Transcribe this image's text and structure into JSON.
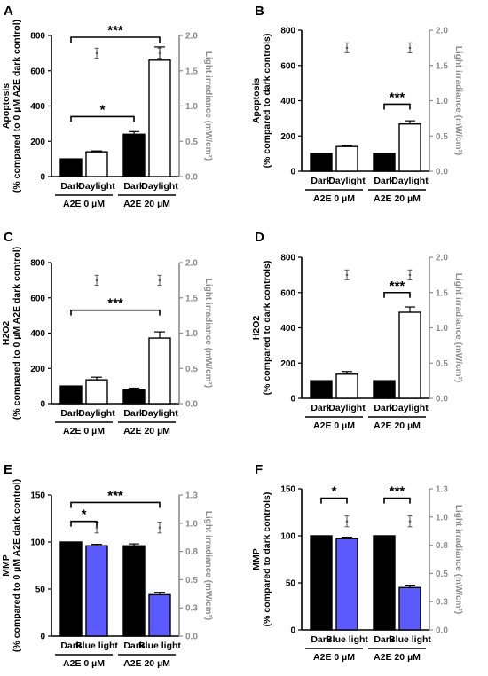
{
  "figure": {
    "colors": {
      "dark": "#000000",
      "daylight": "#ffffff",
      "blue_light": "#5a5aff",
      "irradiance_axis": "#8c8c8c"
    },
    "panels": [
      {
        "label": "A",
        "ylabel_lines": [
          "Apoptosis",
          "(% compared to 0 µM A2E dark control)"
        ],
        "ylim": [
          0,
          800
        ],
        "yticks": [
          0,
          200,
          400,
          600,
          800
        ],
        "right_ylabel": "Light irradiance (mW/cm²)",
        "right_ylim": [
          0,
          2.0
        ],
        "right_ticks": [
          "0.0",
          "0.5",
          "1.0",
          "1.5",
          "2.0"
        ],
        "bars": [
          {
            "label": "Dark",
            "value": 100,
            "err": 0,
            "color": "#000000"
          },
          {
            "label": "Daylight",
            "value": 140,
            "err": 5,
            "color": "#ffffff"
          },
          {
            "label": "Dark",
            "value": 240,
            "err": 15,
            "color": "#000000"
          },
          {
            "label": "Daylight",
            "value": 660,
            "err": 75,
            "color": "#ffffff"
          }
        ],
        "irradiance": [
          {
            "bar": 1,
            "value": 1.75,
            "err": 0.07
          },
          {
            "bar": 3,
            "value": 1.75,
            "err": 0.07
          }
        ],
        "groups": [
          "A2E 0 µM",
          "A2E 20 µM"
        ],
        "significance": [
          {
            "from": 0,
            "to": 2,
            "text": "*",
            "y": 340
          },
          {
            "from": 0,
            "to": 3,
            "text": "***",
            "y": 790
          }
        ]
      },
      {
        "label": "B",
        "ylabel_lines": [
          "Apoptosis",
          "(% compared to dark controls)"
        ],
        "ylim": [
          0,
          800
        ],
        "yticks": [
          0,
          200,
          400,
          600,
          800
        ],
        "right_ylabel": "Light irradiance (mW/cm²)",
        "right_ylim": [
          0,
          2.0
        ],
        "right_ticks": [
          "0.0",
          "0.5",
          "1.0",
          "1.5",
          "2.0"
        ],
        "bars": [
          {
            "label": "Dark",
            "value": 100,
            "err": 0,
            "color": "#000000"
          },
          {
            "label": "Daylight",
            "value": 140,
            "err": 5,
            "color": "#ffffff"
          },
          {
            "label": "Dark",
            "value": 100,
            "err": 0,
            "color": "#000000"
          },
          {
            "label": "Daylight",
            "value": 268,
            "err": 18,
            "color": "#ffffff"
          }
        ],
        "irradiance": [
          {
            "bar": 1,
            "value": 1.75,
            "err": 0.07
          },
          {
            "bar": 3,
            "value": 1.75,
            "err": 0.07
          }
        ],
        "groups": [
          "A2E 0 µM",
          "A2E 20 µM"
        ],
        "significance": [
          {
            "from": 2,
            "to": 3,
            "text": "***",
            "y": 380
          }
        ]
      },
      {
        "label": "C",
        "ylabel_lines": [
          "H2O2",
          "(% compared to 0 µM A2E dark control)"
        ],
        "ylim": [
          0,
          800
        ],
        "yticks": [
          0,
          200,
          400,
          600,
          800
        ],
        "right_ylabel": "Light irradiance (mW/cm²)",
        "right_ylim": [
          0,
          2.0
        ],
        "right_ticks": [
          "0.0",
          "0.5",
          "1.0",
          "1.5",
          "2.0"
        ],
        "bars": [
          {
            "label": "Dark",
            "value": 100,
            "err": 0,
            "color": "#000000"
          },
          {
            "label": "Daylight",
            "value": 135,
            "err": 15,
            "color": "#ffffff"
          },
          {
            "label": "Dark",
            "value": 78,
            "err": 10,
            "color": "#000000"
          },
          {
            "label": "Daylight",
            "value": 372,
            "err": 35,
            "color": "#ffffff"
          }
        ],
        "irradiance": [
          {
            "bar": 1,
            "value": 1.75,
            "err": 0.07
          },
          {
            "bar": 3,
            "value": 1.75,
            "err": 0.07
          }
        ],
        "groups": [
          "A2E 0 µM",
          "A2E 20 µM"
        ],
        "significance": [
          {
            "from": 0,
            "to": 3,
            "text": "***",
            "y": 530
          }
        ]
      },
      {
        "label": "D",
        "ylabel_lines": [
          "H2O2",
          "(% compared to dark controls)"
        ],
        "ylim": [
          0,
          800
        ],
        "yticks": [
          0,
          200,
          400,
          600,
          800
        ],
        "right_ylabel": "Light irradiance (mW/cm²)",
        "right_ylim": [
          0,
          2.0
        ],
        "right_ticks": [
          "0.0",
          "0.5",
          "1.0",
          "1.5",
          "2.0"
        ],
        "bars": [
          {
            "label": "Dark",
            "value": 100,
            "err": 0,
            "color": "#000000"
          },
          {
            "label": "Daylight",
            "value": 137,
            "err": 15,
            "color": "#ffffff"
          },
          {
            "label": "Dark",
            "value": 100,
            "err": 0,
            "color": "#000000"
          },
          {
            "label": "Daylight",
            "value": 488,
            "err": 30,
            "color": "#ffffff"
          }
        ],
        "irradiance": [
          {
            "bar": 1,
            "value": 1.75,
            "err": 0.07
          },
          {
            "bar": 3,
            "value": 1.75,
            "err": 0.07
          }
        ],
        "groups": [
          "A2E 0 µM",
          "A2E 20 µM"
        ],
        "significance": [
          {
            "from": 2,
            "to": 3,
            "text": "***",
            "y": 600
          }
        ]
      },
      {
        "label": "E",
        "ylabel_lines": [
          "MMP",
          "(% compared to 0 µM A2E dark control)"
        ],
        "ylim": [
          0,
          150
        ],
        "yticks": [
          0,
          50,
          100,
          150
        ],
        "right_ylabel": "Light irradiance (mW/cm²)",
        "right_ylim": [
          0,
          1.3
        ],
        "right_ticks": [
          "0.0",
          "0.3",
          "0.5",
          "0.8",
          "1.0",
          "1.3"
        ],
        "right_tick_values": [
          0,
          0.26,
          0.52,
          0.78,
          1.04,
          1.3
        ],
        "bars": [
          {
            "label": "Dark",
            "value": 100,
            "err": 0,
            "color": "#000000"
          },
          {
            "label": "Blue light",
            "value": 96,
            "err": 1.5,
            "color": "#5a5aff"
          },
          {
            "label": "Dark",
            "value": 96,
            "err": 2,
            "color": "#000000"
          },
          {
            "label": "Blue light",
            "value": 44,
            "err": 2.5,
            "color": "#5a5aff"
          }
        ],
        "irradiance": [
          {
            "bar": 1,
            "value": 1.0,
            "err": 0.05
          },
          {
            "bar": 3,
            "value": 1.0,
            "err": 0.05
          }
        ],
        "groups": [
          "A2E 0 µM",
          "A2E 20 µM"
        ],
        "significance": [
          {
            "from": 0,
            "to": 1,
            "text": "*",
            "y": 122
          },
          {
            "from": 0,
            "to": 3,
            "text": "***",
            "y": 142
          }
        ]
      },
      {
        "label": "F",
        "ylabel_lines": [
          "MMP",
          "(% compared to dark controls)"
        ],
        "ylim": [
          0,
          150
        ],
        "yticks": [
          0,
          50,
          100,
          150
        ],
        "right_ylabel": "Light irradiance (mW/cm²)",
        "right_ylim": [
          0,
          1.3
        ],
        "right_ticks": [
          "0.0",
          "0.3",
          "0.5",
          "0.8",
          "1.0",
          "1.3"
        ],
        "right_tick_values": [
          0,
          0.26,
          0.52,
          0.78,
          1.04,
          1.3
        ],
        "bars": [
          {
            "label": "Dark",
            "value": 100,
            "err": 0,
            "color": "#000000"
          },
          {
            "label": "Blue light",
            "value": 97,
            "err": 1.5,
            "color": "#5a5aff"
          },
          {
            "label": "Dark",
            "value": 100,
            "err": 0,
            "color": "#000000"
          },
          {
            "label": "Blue light",
            "value": 45,
            "err": 2.5,
            "color": "#5a5aff"
          }
        ],
        "irradiance": [
          {
            "bar": 1,
            "value": 1.0,
            "err": 0.05
          },
          {
            "bar": 3,
            "value": 1.0,
            "err": 0.05
          }
        ],
        "groups": [
          "A2E 0 µM",
          "A2E 20 µM"
        ],
        "significance": [
          {
            "from": 0,
            "to": 1,
            "text": "*",
            "y": 140
          },
          {
            "from": 2,
            "to": 3,
            "text": "***",
            "y": 140
          }
        ]
      }
    ]
  },
  "chart_data": [
    {
      "panel": "A",
      "type": "bar",
      "categories": [
        "Dark",
        "Daylight",
        "Dark",
        "Daylight"
      ],
      "groups": [
        "A2E 0 µM",
        "A2E 20 µM"
      ],
      "values": [
        100,
        140,
        240,
        660
      ],
      "ylabel": "Apoptosis (% compared to 0 µM A2E dark control)",
      "ylim": [
        0,
        800
      ],
      "y2label": "Light irradiance (mW/cm²)",
      "y2lim": [
        0,
        2.0
      ],
      "irradiance": [
        1.75,
        1.75
      ]
    },
    {
      "panel": "B",
      "type": "bar",
      "categories": [
        "Dark",
        "Daylight",
        "Dark",
        "Daylight"
      ],
      "groups": [
        "A2E 0 µM",
        "A2E 20 µM"
      ],
      "values": [
        100,
        140,
        100,
        268
      ],
      "ylabel": "Apoptosis (% compared to dark controls)",
      "ylim": [
        0,
        800
      ],
      "y2label": "Light irradiance (mW/cm²)",
      "y2lim": [
        0,
        2.0
      ],
      "irradiance": [
        1.75,
        1.75
      ]
    },
    {
      "panel": "C",
      "type": "bar",
      "categories": [
        "Dark",
        "Daylight",
        "Dark",
        "Daylight"
      ],
      "groups": [
        "A2E 0 µM",
        "A2E 20 µM"
      ],
      "values": [
        100,
        135,
        78,
        372
      ],
      "ylabel": "H2O2 (% compared to 0 µM A2E dark control)",
      "ylim": [
        0,
        800
      ],
      "y2label": "Light irradiance (mW/cm²)",
      "y2lim": [
        0,
        2.0
      ],
      "irradiance": [
        1.75,
        1.75
      ]
    },
    {
      "panel": "D",
      "type": "bar",
      "categories": [
        "Dark",
        "Daylight",
        "Dark",
        "Daylight"
      ],
      "groups": [
        "A2E 0 µM",
        "A2E 20 µM"
      ],
      "values": [
        100,
        137,
        100,
        488
      ],
      "ylabel": "H2O2 (% compared to dark controls)",
      "ylim": [
        0,
        800
      ],
      "y2label": "Light irradiance (mW/cm²)",
      "y2lim": [
        0,
        2.0
      ],
      "irradiance": [
        1.75,
        1.75
      ]
    },
    {
      "panel": "E",
      "type": "bar",
      "categories": [
        "Dark",
        "Blue light",
        "Dark",
        "Blue light"
      ],
      "groups": [
        "A2E 0 µM",
        "A2E 20 µM"
      ],
      "values": [
        100,
        96,
        96,
        44
      ],
      "ylabel": "MMP (% compared to 0 µM A2E dark control)",
      "ylim": [
        0,
        150
      ],
      "y2label": "Light irradiance (mW/cm²)",
      "y2lim": [
        0,
        1.3
      ],
      "irradiance": [
        1.0,
        1.0
      ]
    },
    {
      "panel": "F",
      "type": "bar",
      "categories": [
        "Dark",
        "Blue light",
        "Dark",
        "Blue light"
      ],
      "groups": [
        "A2E 0 µM",
        "A2E 20 µM"
      ],
      "values": [
        100,
        97,
        100,
        45
      ],
      "ylabel": "MMP (% compared to dark controls)",
      "ylim": [
        0,
        150
      ],
      "y2label": "Light irradiance (mW/cm²)",
      "y2lim": [
        0,
        1.3
      ],
      "irradiance": [
        1.0,
        1.0
      ]
    }
  ]
}
